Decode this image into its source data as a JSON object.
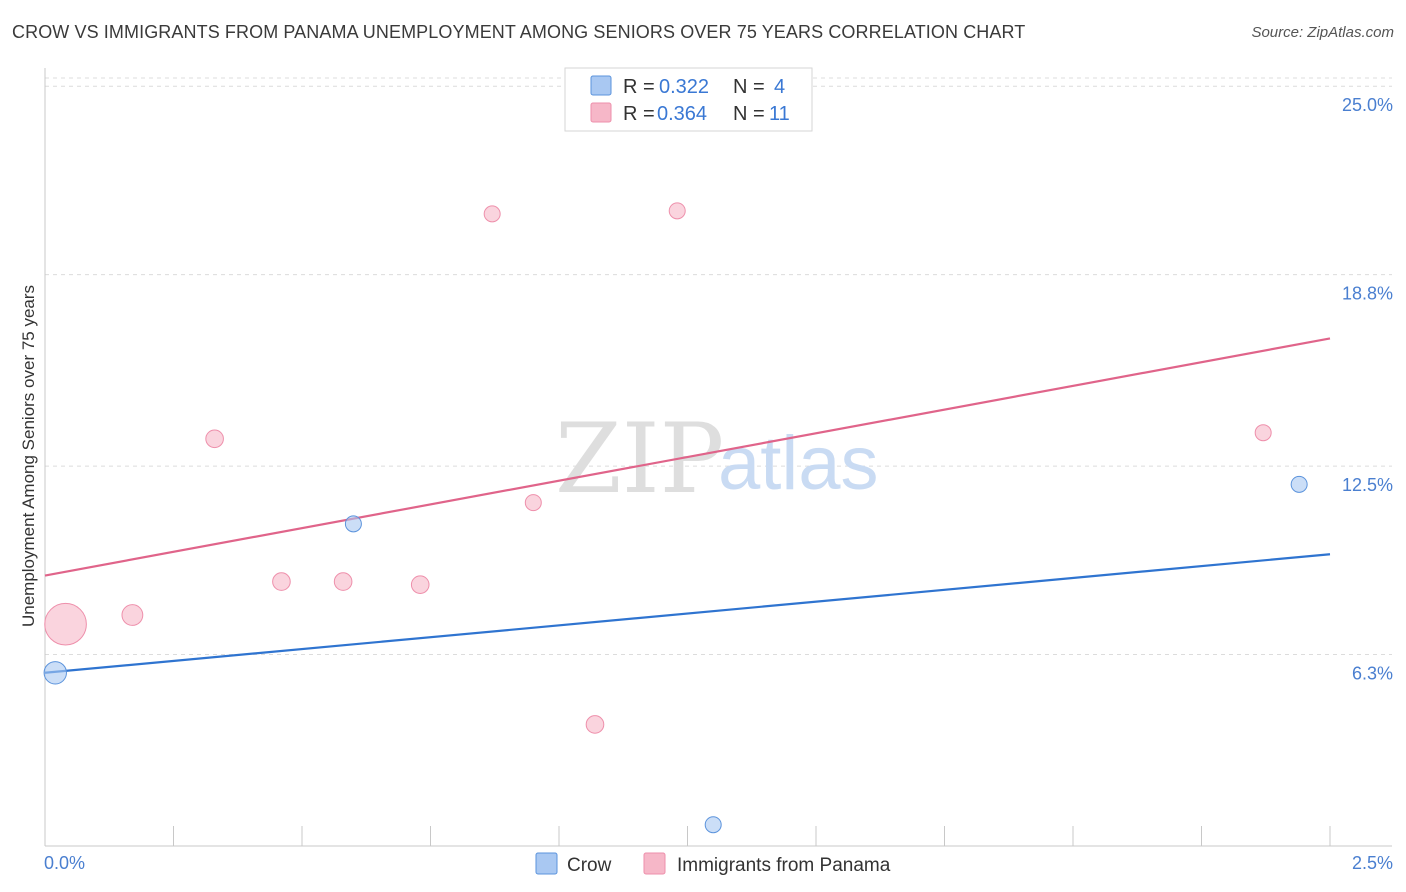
{
  "title": "CROW VS IMMIGRANTS FROM PANAMA UNEMPLOYMENT AMONG SENIORS OVER 75 YEARS CORRELATION CHART",
  "source": "Source: ZipAtlas.com",
  "watermark": {
    "zip": "ZIP",
    "atlas": "atlas"
  },
  "legend_top": [
    {
      "r_label": "R =",
      "r_value": "0.322",
      "n_label": "N =",
      "n_value": "4",
      "color": "#a9c8f2"
    },
    {
      "r_label": "R =",
      "r_value": "0.364",
      "n_label": "N =",
      "n_value": "11",
      "color": "#f6b7c8"
    }
  ],
  "chart_data": {
    "type": "scatter",
    "title": "CROW VS IMMIGRANTS FROM PANAMA UNEMPLOYMENT AMONG SENIORS OVER 75 YEARS CORRELATION CHART",
    "xlabel": "",
    "ylabel": "Unemployment Among Seniors over 75 years",
    "xlim": [
      0,
      2.5
    ],
    "ylim": [
      0,
      25.6
    ],
    "x_tick_labels": [
      "0.0%",
      "2.5%"
    ],
    "y_ticks": [
      6.3,
      12.5,
      18.8,
      25.0
    ],
    "y_tick_labels": [
      "6.3%",
      "12.5%",
      "18.8%",
      "25.0%"
    ],
    "grid": true,
    "series": [
      {
        "name": "Crow",
        "color": "#5b93dc",
        "fill": "#a9c8f2",
        "points": [
          {
            "x": 0.02,
            "y": 5.7,
            "size": 1.4
          },
          {
            "x": 0.6,
            "y": 10.6,
            "size": 1.0
          },
          {
            "x": 1.3,
            "y": 0.7,
            "size": 1.0
          },
          {
            "x": 2.44,
            "y": 11.9,
            "size": 1.0
          }
        ],
        "trend": {
          "x": [
            0.0,
            2.5
          ],
          "y": [
            5.7,
            9.6
          ],
          "color": "#2f74d0"
        }
      },
      {
        "name": "Immigrants from Panama",
        "color": "#ee8fab",
        "fill": "#f6b7c8",
        "points": [
          {
            "x": 0.04,
            "y": 7.3,
            "size": 2.6
          },
          {
            "x": 0.17,
            "y": 7.6,
            "size": 1.3
          },
          {
            "x": 0.33,
            "y": 13.4,
            "size": 1.1
          },
          {
            "x": 0.46,
            "y": 8.7,
            "size": 1.1
          },
          {
            "x": 0.58,
            "y": 8.7,
            "size": 1.1
          },
          {
            "x": 0.73,
            "y": 8.6,
            "size": 1.1
          },
          {
            "x": 0.87,
            "y": 20.8,
            "size": 1.0
          },
          {
            "x": 0.95,
            "y": 11.3,
            "size": 1.0
          },
          {
            "x": 1.07,
            "y": 4.0,
            "size": 1.1
          },
          {
            "x": 1.23,
            "y": 20.9,
            "size": 1.0
          },
          {
            "x": 2.37,
            "y": 13.6,
            "size": 1.0
          }
        ],
        "trend": {
          "x": [
            0.0,
            2.5
          ],
          "y": [
            8.9,
            16.7
          ],
          "color": "#e0648a"
        }
      }
    ],
    "legend": [
      "Crow",
      "Immigrants from Panama"
    ]
  }
}
